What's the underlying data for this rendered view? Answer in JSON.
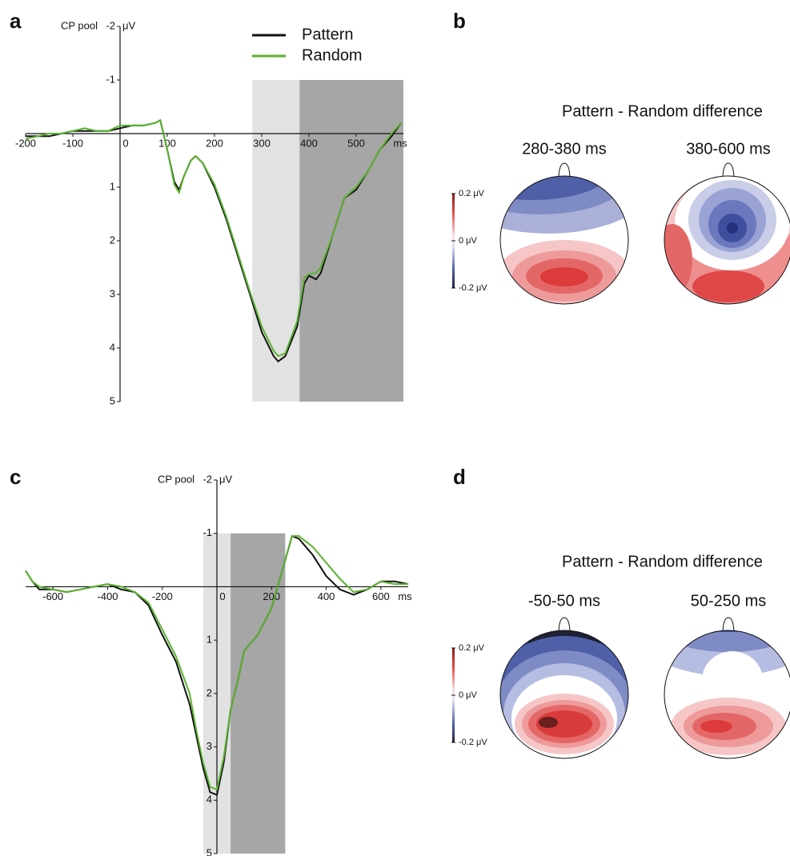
{
  "chart_data": [
    {
      "type": "line",
      "panel_label": "a",
      "ylabel": "CP pool",
      "yunit": "μV",
      "xlabel": "ms",
      "legend": "upper center",
      "x": [
        -200,
        -175,
        -150,
        -125,
        -100,
        -75,
        -50,
        -25,
        0,
        25,
        50,
        75,
        85,
        100,
        115,
        125,
        135,
        150,
        160,
        175,
        200,
        225,
        250,
        275,
        300,
        325,
        335,
        350,
        375,
        390,
        400,
        415,
        425,
        450,
        475,
        500,
        525,
        550,
        575,
        595
      ],
      "series": [
        {
          "name": "Pattern",
          "color": "#111111",
          "values": [
            0.05,
            0.05,
            0.05,
            0.0,
            -0.05,
            -0.05,
            -0.05,
            -0.05,
            -0.1,
            -0.15,
            -0.15,
            -0.2,
            -0.25,
            0.3,
            0.9,
            1.05,
            0.8,
            0.5,
            0.42,
            0.55,
            1.0,
            1.6,
            2.3,
            3.0,
            3.7,
            4.15,
            4.25,
            4.15,
            3.6,
            2.8,
            2.65,
            2.72,
            2.6,
            1.9,
            1.2,
            1.05,
            0.7,
            0.3,
            0.05,
            -0.2
          ]
        },
        {
          "name": "Random",
          "color": "#5ab22d",
          "values": [
            0.1,
            0.05,
            0.0,
            0.0,
            -0.05,
            -0.1,
            -0.05,
            -0.05,
            -0.15,
            -0.15,
            -0.15,
            -0.2,
            -0.25,
            0.3,
            0.95,
            1.1,
            0.8,
            0.5,
            0.42,
            0.55,
            0.95,
            1.55,
            2.25,
            2.95,
            3.6,
            4.05,
            4.15,
            4.1,
            3.5,
            2.7,
            2.62,
            2.6,
            2.5,
            1.9,
            1.2,
            1.0,
            0.7,
            0.3,
            0.0,
            -0.2
          ]
        }
      ],
      "shaded": [
        {
          "x": [
            280,
            380
          ],
          "y": [
            -1,
            5
          ],
          "color": "#e2e2e2"
        },
        {
          "x": [
            380,
            600
          ],
          "y": [
            -1,
            5
          ],
          "color": "#a6a6a6"
        }
      ],
      "xlim": [
        -200,
        600
      ],
      "xticks": [
        -200,
        -100,
        0,
        100,
        200,
        300,
        400,
        500
      ],
      "ylim": [
        -2,
        5
      ],
      "yticks": [
        -2,
        -1,
        1,
        2,
        3,
        4,
        5
      ],
      "y_inverted": true
    },
    {
      "type": "topomap",
      "panel_label": "b",
      "title": "Pattern - Random difference",
      "map_labels": [
        "280-380 ms",
        "380-600 ms"
      ],
      "colorbar_labels": [
        "0.2 μV",
        "0 μV",
        "-0.2 μV"
      ]
    },
    {
      "type": "line",
      "panel_label": "c",
      "ylabel": "CP pool",
      "yunit": "μV",
      "xlabel": "ms",
      "x": [
        -700,
        -675,
        -650,
        -600,
        -550,
        -500,
        -450,
        -400,
        -350,
        -300,
        -250,
        -200,
        -150,
        -100,
        -75,
        -50,
        -25,
        0,
        25,
        50,
        75,
        100,
        150,
        200,
        250,
        275,
        300,
        350,
        400,
        450,
        500,
        550,
        600,
        650,
        700
      ],
      "series": [
        {
          "color": "#111111",
          "values": [
            -0.3,
            -0.1,
            0.05,
            0.05,
            0.1,
            0.05,
            0.0,
            -0.05,
            0.05,
            0.1,
            0.35,
            0.9,
            1.4,
            2.2,
            2.8,
            3.4,
            3.85,
            3.9,
            3.3,
            2.3,
            1.8,
            1.2,
            0.9,
            0.4,
            -0.5,
            -0.95,
            -0.9,
            -0.6,
            -0.2,
            0.05,
            0.15,
            0.05,
            -0.1,
            -0.1,
            -0.05
          ]
        },
        {
          "color": "#5ab22d",
          "values": [
            -0.3,
            -0.1,
            0.0,
            0.05,
            0.1,
            0.05,
            0.0,
            -0.05,
            0.0,
            0.1,
            0.3,
            0.8,
            1.3,
            2.0,
            2.7,
            3.3,
            3.75,
            3.8,
            3.2,
            2.3,
            1.8,
            1.2,
            0.9,
            0.4,
            -0.5,
            -0.95,
            -0.95,
            -0.75,
            -0.45,
            -0.15,
            0.1,
            0.05,
            -0.1,
            -0.05,
            -0.05
          ]
        }
      ],
      "shaded": [
        {
          "x": [
            -50,
            50
          ],
          "y": [
            -1,
            5
          ],
          "color": "#e2e2e2"
        },
        {
          "x": [
            50,
            250
          ],
          "y": [
            -1,
            5
          ],
          "color": "#a6a6a6"
        }
      ],
      "xlim": [
        -700,
        700
      ],
      "xticks": [
        -600,
        -400,
        -200,
        0,
        200,
        400,
        600
      ],
      "ylim": [
        -2,
        5
      ],
      "yticks": [
        -2,
        -1,
        1,
        2,
        3,
        4,
        5
      ],
      "y_inverted": true
    },
    {
      "type": "topomap",
      "panel_label": "d",
      "title": "Pattern - Random difference",
      "map_labels": [
        "-50-50 ms",
        "50-250 ms"
      ],
      "colorbar_labels": [
        "0.2 μV",
        "0 μV",
        "-0.2 μV"
      ]
    }
  ]
}
